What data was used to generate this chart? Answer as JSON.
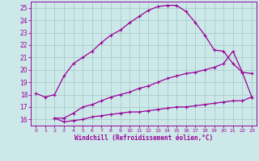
{
  "bg_color": "#cce8e8",
  "grid_color": "#aacccc",
  "line_color": "#990099",
  "xlabel": "Windchill (Refroidissement éolien,°C)",
  "xlim": [
    -0.5,
    23.5
  ],
  "ylim": [
    15.5,
    25.5
  ],
  "yticks": [
    16,
    17,
    18,
    19,
    20,
    21,
    22,
    23,
    24,
    25
  ],
  "xticks": [
    0,
    1,
    2,
    3,
    4,
    5,
    6,
    7,
    8,
    9,
    10,
    11,
    12,
    13,
    14,
    15,
    16,
    17,
    18,
    19,
    20,
    21,
    22,
    23
  ],
  "curve1_x": [
    0,
    1,
    2,
    3,
    4,
    5,
    6,
    7,
    8,
    9,
    10,
    11,
    12,
    13,
    14,
    15,
    16,
    17,
    18,
    19,
    20,
    21,
    22,
    23
  ],
  "curve1_y": [
    18.1,
    17.8,
    18.0,
    19.5,
    20.5,
    21.0,
    21.5,
    22.2,
    22.8,
    23.2,
    23.8,
    24.3,
    24.8,
    25.1,
    25.2,
    25.2,
    24.7,
    23.8,
    22.8,
    21.6,
    21.5,
    20.5,
    19.8,
    17.8
  ],
  "curve2_x": [
    2,
    3,
    4,
    5,
    6,
    7,
    8,
    9,
    10,
    11,
    12,
    13,
    14,
    15,
    16,
    17,
    18,
    19,
    20,
    21,
    22,
    23
  ],
  "curve2_y": [
    16.1,
    16.1,
    16.5,
    17.0,
    17.2,
    17.5,
    17.8,
    18.0,
    18.2,
    18.5,
    18.7,
    19.0,
    19.3,
    19.5,
    19.7,
    19.8,
    20.0,
    20.2,
    20.5,
    21.5,
    19.8,
    19.7
  ],
  "curve3_x": [
    2,
    3,
    4,
    5,
    6,
    7,
    8,
    9,
    10,
    11,
    12,
    13,
    14,
    15,
    16,
    17,
    18,
    19,
    20,
    21,
    22,
    23
  ],
  "curve3_y": [
    16.1,
    15.8,
    15.9,
    16.0,
    16.2,
    16.3,
    16.4,
    16.5,
    16.6,
    16.6,
    16.7,
    16.8,
    16.9,
    17.0,
    17.0,
    17.1,
    17.2,
    17.3,
    17.4,
    17.5,
    17.5,
    17.8
  ]
}
